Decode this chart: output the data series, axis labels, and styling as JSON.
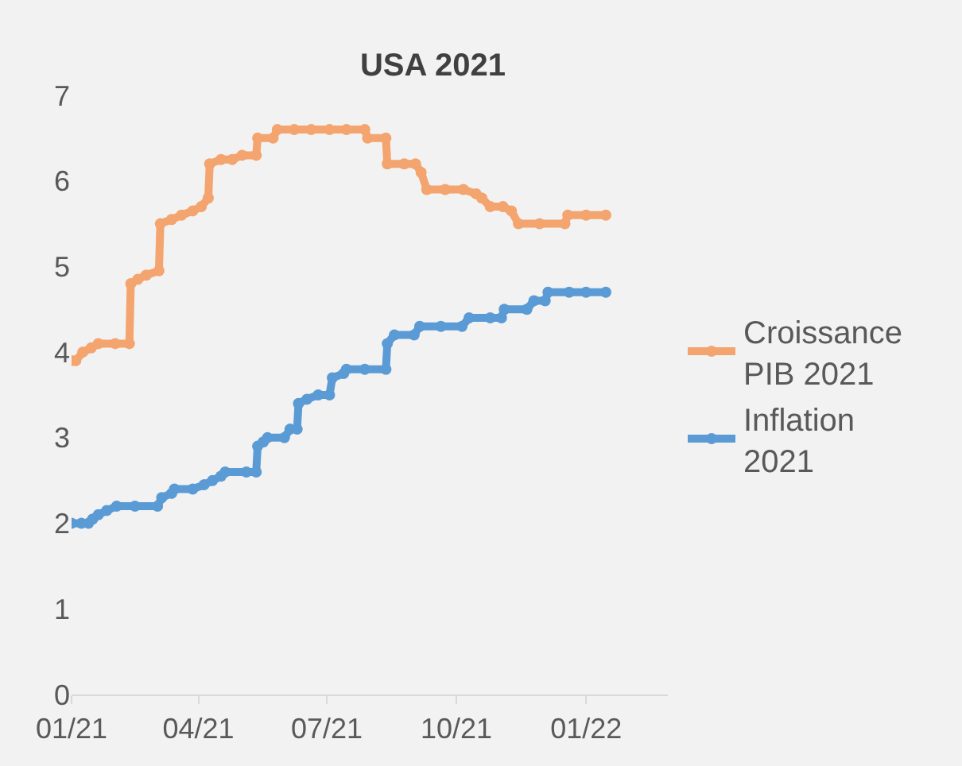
{
  "chart_data": {
    "type": "line",
    "title": "USA 2021",
    "xlim": [
      "2021-01-01",
      "2022-02-28"
    ],
    "xticks": [
      {
        "value": "2021-01-01",
        "label": "01/21"
      },
      {
        "value": "2021-04-01",
        "label": "04/21"
      },
      {
        "value": "2021-07-01",
        "label": "07/21"
      },
      {
        "value": "2021-10-01",
        "label": "10/21"
      },
      {
        "value": "2022-01-01",
        "label": "01/22"
      }
    ],
    "ylim": [
      0,
      7
    ],
    "yticks": [
      0,
      1,
      2,
      3,
      4,
      5,
      6,
      7
    ],
    "grid": false,
    "legend": "right",
    "marker": "circle",
    "line_style": "solid",
    "series": [
      {
        "name": "Croissance PIB 2021",
        "color": "#f4a46e",
        "x": [
          "2021-01-01",
          "2021-01-04",
          "2021-01-09",
          "2021-01-15",
          "2021-01-20",
          "2021-02-01",
          "2021-02-11",
          "2021-02-12",
          "2021-02-17",
          "2021-02-23",
          "2021-03-04",
          "2021-03-05",
          "2021-03-13",
          "2021-03-20",
          "2021-03-28",
          "2021-04-03",
          "2021-04-08",
          "2021-04-09",
          "2021-04-17",
          "2021-04-25",
          "2021-05-02",
          "2021-05-12",
          "2021-05-13",
          "2021-05-24",
          "2021-05-27",
          "2021-06-08",
          "2021-06-20",
          "2021-07-03",
          "2021-07-15",
          "2021-07-28",
          "2021-07-30",
          "2021-08-12",
          "2021-08-13",
          "2021-08-25",
          "2021-09-02",
          "2021-09-06",
          "2021-09-10",
          "2021-09-23",
          "2021-10-06",
          "2021-10-15",
          "2021-10-19",
          "2021-10-25",
          "2021-11-03",
          "2021-11-09",
          "2021-11-14",
          "2021-11-29",
          "2021-12-17",
          "2021-12-19",
          "2022-01-01",
          "2022-01-15"
        ],
        "values": [
          3.9,
          3.9,
          4.0,
          4.05,
          4.1,
          4.1,
          4.1,
          4.8,
          4.85,
          4.9,
          4.95,
          5.5,
          5.55,
          5.6,
          5.65,
          5.7,
          5.8,
          6.2,
          6.25,
          6.25,
          6.3,
          6.3,
          6.5,
          6.5,
          6.6,
          6.6,
          6.6,
          6.6,
          6.6,
          6.6,
          6.5,
          6.5,
          6.2,
          6.2,
          6.2,
          6.1,
          5.9,
          5.9,
          5.9,
          5.85,
          5.8,
          5.7,
          5.7,
          5.65,
          5.5,
          5.5,
          5.5,
          5.6,
          5.6,
          5.6
        ]
      },
      {
        "name": "Inflation 2021",
        "color": "#5b9bd5",
        "x": [
          "2021-01-01",
          "2021-01-08",
          "2021-01-13",
          "2021-01-16",
          "2021-01-20",
          "2021-01-26",
          "2021-02-02",
          "2021-02-15",
          "2021-03-03",
          "2021-03-06",
          "2021-03-13",
          "2021-03-15",
          "2021-03-28",
          "2021-04-05",
          "2021-04-11",
          "2021-04-17",
          "2021-04-20",
          "2021-05-05",
          "2021-05-12",
          "2021-05-13",
          "2021-05-17",
          "2021-05-20",
          "2021-06-01",
          "2021-06-05",
          "2021-06-10",
          "2021-06-11",
          "2021-06-17",
          "2021-06-25",
          "2021-07-03",
          "2021-07-05",
          "2021-07-13",
          "2021-07-15",
          "2021-07-28",
          "2021-08-12",
          "2021-08-13",
          "2021-08-18",
          "2021-09-01",
          "2021-09-05",
          "2021-09-20",
          "2021-10-05",
          "2021-10-10",
          "2021-10-25",
          "2021-11-02",
          "2021-11-04",
          "2021-11-20",
          "2021-11-25",
          "2021-12-03",
          "2021-12-05",
          "2021-12-20",
          "2022-01-01",
          "2022-01-15"
        ],
        "values": [
          2.0,
          2.0,
          2.0,
          2.05,
          2.1,
          2.15,
          2.2,
          2.2,
          2.2,
          2.3,
          2.35,
          2.4,
          2.4,
          2.45,
          2.5,
          2.55,
          2.6,
          2.6,
          2.6,
          2.9,
          2.95,
          3.0,
          3.0,
          3.1,
          3.1,
          3.4,
          3.45,
          3.5,
          3.5,
          3.7,
          3.75,
          3.8,
          3.8,
          3.8,
          4.1,
          4.2,
          4.2,
          4.3,
          4.3,
          4.3,
          4.4,
          4.4,
          4.4,
          4.5,
          4.5,
          4.6,
          4.6,
          4.7,
          4.7,
          4.7,
          4.7
        ]
      }
    ]
  }
}
